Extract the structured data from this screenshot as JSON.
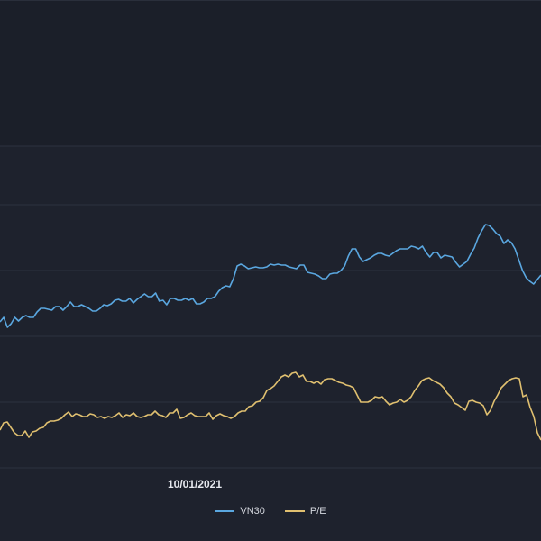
{
  "chart_data": {
    "type": "line",
    "x_tick_labels": [
      "10/01/2021"
    ],
    "grid": true,
    "legend_position": "bottom-center",
    "series": [
      {
        "name": "VN30",
        "color": "#5aa7e0",
        "values": [
          357,
          352,
          363,
          359,
          352,
          356,
          352,
          350,
          352,
          352,
          346,
          342,
          342,
          343,
          344,
          340,
          340,
          344,
          340,
          335,
          340,
          340,
          338,
          340,
          342,
          345,
          345,
          342,
          338,
          339,
          337,
          333,
          332,
          334,
          334,
          331,
          336,
          332,
          329,
          326,
          329,
          329,
          325,
          334,
          333,
          338,
          331,
          331,
          333,
          333,
          331,
          333,
          331,
          337,
          337,
          335,
          331,
          331,
          329,
          323,
          319,
          317,
          318,
          309,
          295,
          293,
          295,
          298,
          297,
          296,
          297,
          297,
          296,
          293,
          294,
          293,
          294,
          294,
          296,
          297,
          298,
          294,
          294,
          302,
          303,
          304,
          306,
          309,
          309,
          304,
          303,
          303,
          300,
          295,
          284,
          276,
          276,
          285,
          290,
          288,
          286,
          283,
          281,
          281,
          283,
          284,
          281,
          278,
          276,
          276,
          276,
          273,
          274,
          276,
          273,
          280,
          285,
          280,
          280,
          286,
          283,
          284,
          285,
          291,
          296,
          293,
          290,
          282,
          275,
          264,
          256,
          249,
          250,
          254,
          259,
          262,
          270,
          266,
          269,
          276,
          288,
          300,
          308,
          312,
          315,
          310,
          305
        ]
      },
      {
        "name": "P/E",
        "color": "#e0c070",
        "values": [
          477,
          469,
          468,
          474,
          480,
          483,
          483,
          478,
          485,
          479,
          478,
          475,
          474,
          469,
          467,
          467,
          466,
          464,
          460,
          457,
          462,
          459,
          460,
          462,
          462,
          459,
          460,
          463,
          462,
          464,
          462,
          463,
          461,
          458,
          463,
          460,
          461,
          458,
          462,
          463,
          462,
          460,
          460,
          456,
          460,
          461,
          463,
          458,
          458,
          454,
          464,
          463,
          460,
          458,
          461,
          462,
          462,
          462,
          458,
          465,
          461,
          459,
          461,
          462,
          464,
          462,
          458,
          456,
          456,
          451,
          450,
          446,
          445,
          441,
          433,
          431,
          428,
          423,
          418,
          416,
          418,
          414,
          413,
          418,
          416,
          423,
          423,
          425,
          423,
          426,
          421,
          420,
          420,
          422,
          424,
          425,
          427,
          428,
          430,
          438,
          446,
          446,
          446,
          444,
          440,
          441,
          440,
          445,
          449,
          447,
          446,
          443,
          446,
          444,
          440,
          433,
          428,
          422,
          420,
          419,
          422,
          424,
          426,
          430,
          436,
          440,
          447,
          449,
          452,
          455,
          445,
          444,
          446,
          447,
          450,
          460,
          455,
          445,
          438,
          430,
          426,
          422,
          420,
          419,
          420,
          440,
          438,
          452,
          462,
          480,
          488
        ]
      }
    ]
  }
}
